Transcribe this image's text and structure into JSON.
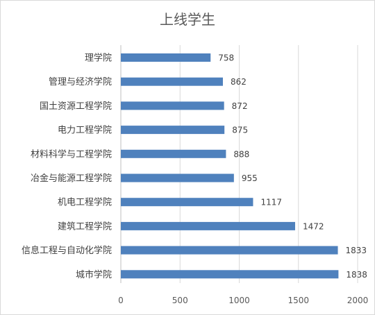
{
  "chart_data": {
    "type": "bar",
    "orientation": "horizontal",
    "title": "上线学生",
    "categories": [
      "理学院",
      "管理与经济学院",
      "国土资源工程学院",
      "电力工程学院",
      "材料科学与工程学院",
      "冶金与能源工程学院",
      "机电工程学院",
      "建筑工程学院",
      "信息工程与自动化学院",
      "城市学院"
    ],
    "values": [
      758,
      862,
      872,
      875,
      888,
      955,
      1117,
      1472,
      1833,
      1838
    ],
    "xlim": [
      0,
      2000
    ],
    "xticks": [
      0,
      500,
      1000,
      1500,
      2000
    ],
    "grid": true,
    "legend": "none",
    "bar_color": "#4f81bd"
  }
}
